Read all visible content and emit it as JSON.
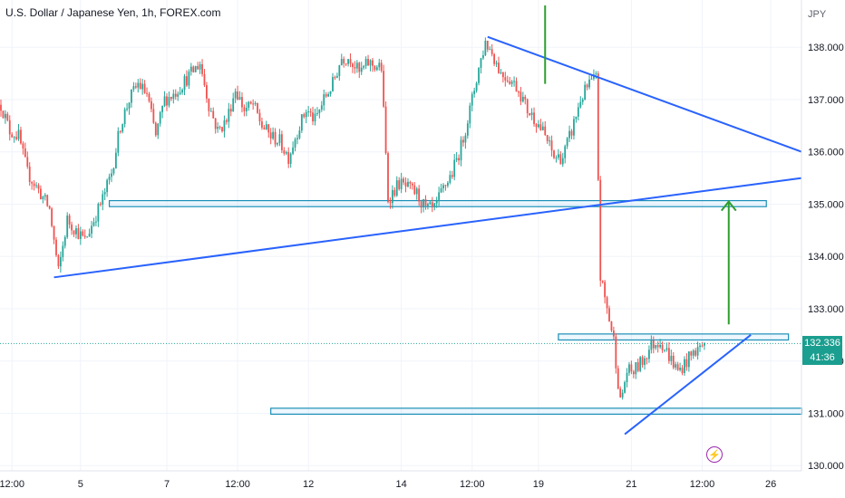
{
  "header": {
    "title": "U.S. Dollar / Japanese Yen, 1h, FOREX.com",
    "unit": "JPY"
  },
  "price_label": {
    "value": "132.336",
    "countdown": "41:36"
  },
  "badge": {
    "symbol": "⚡",
    "icon": "lightning-icon",
    "color": "#9c27b0"
  },
  "colors": {
    "up": "#26a69a",
    "down": "#ef5350",
    "trendline": "#2962ff",
    "arrow": "#2e9e2e",
    "zone": "#1a8fb8"
  },
  "chart_data": {
    "type": "candlestick",
    "ylim": [
      129.9,
      138.8
    ],
    "y_ticks": [
      130,
      131,
      132,
      133,
      134,
      135,
      136,
      137,
      138
    ],
    "y_tick_labels": [
      "130.000",
      "131.000",
      "132.000",
      "133.000",
      "134.000",
      "135.000",
      "136.000",
      "137.000",
      "138.000"
    ],
    "x_ticks": [
      {
        "label": "12:00",
        "i": 5
      },
      {
        "label": "5",
        "i": 36
      },
      {
        "label": "7",
        "i": 75
      },
      {
        "label": "12:00",
        "i": 107
      },
      {
        "label": "12",
        "i": 139
      },
      {
        "label": "14",
        "i": 181
      },
      {
        "label": "12:00",
        "i": 213
      },
      {
        "label": "19",
        "i": 243
      },
      {
        "label": "21",
        "i": 285
      },
      {
        "label": "12:00",
        "i": 317
      },
      {
        "label": "26",
        "i": 348
      }
    ],
    "candle_count": 360,
    "path": [
      [
        0,
        136.9
      ],
      [
        4,
        136.4
      ],
      [
        8,
        136.3
      ],
      [
        12,
        135.6
      ],
      [
        18,
        135.2
      ],
      [
        22,
        134.9
      ],
      [
        26,
        133.7
      ],
      [
        30,
        134.7
      ],
      [
        34,
        134.5
      ],
      [
        38,
        134.3
      ],
      [
        42,
        134.7
      ],
      [
        46,
        135.1
      ],
      [
        50,
        135.6
      ],
      [
        54,
        136.5
      ],
      [
        58,
        137.0
      ],
      [
        62,
        137.3
      ],
      [
        66,
        137.1
      ],
      [
        70,
        136.3
      ],
      [
        74,
        137.0
      ],
      [
        78,
        137.1
      ],
      [
        82,
        137.3
      ],
      [
        86,
        137.5
      ],
      [
        90,
        137.7
      ],
      [
        94,
        136.9
      ],
      [
        98,
        136.4
      ],
      [
        102,
        136.6
      ],
      [
        106,
        137.2
      ],
      [
        110,
        136.8
      ],
      [
        114,
        136.9
      ],
      [
        118,
        136.5
      ],
      [
        122,
        136.3
      ],
      [
        126,
        136.2
      ],
      [
        130,
        135.9
      ],
      [
        134,
        136.4
      ],
      [
        138,
        136.8
      ],
      [
        142,
        136.6
      ],
      [
        146,
        137.0
      ],
      [
        150,
        137.3
      ],
      [
        154,
        137.8
      ],
      [
        158,
        137.8
      ],
      [
        162,
        137.5
      ],
      [
        166,
        137.7
      ],
      [
        172,
        137.6
      ],
      [
        175,
        135.1
      ],
      [
        180,
        135.4
      ],
      [
        184,
        135.3
      ],
      [
        188,
        135.2
      ],
      [
        192,
        134.9
      ],
      [
        196,
        134.9
      ],
      [
        200,
        135.3
      ],
      [
        204,
        135.6
      ],
      [
        208,
        136.1
      ],
      [
        212,
        136.8
      ],
      [
        216,
        137.6
      ],
      [
        219,
        138.1
      ],
      [
        222,
        137.9
      ],
      [
        226,
        137.5
      ],
      [
        230,
        137.4
      ],
      [
        234,
        137.2
      ],
      [
        238,
        136.8
      ],
      [
        242,
        136.6
      ],
      [
        246,
        136.3
      ],
      [
        250,
        135.9
      ],
      [
        254,
        135.9
      ],
      [
        258,
        136.4
      ],
      [
        262,
        137.0
      ],
      [
        266,
        137.3
      ],
      [
        269,
        137.4
      ],
      [
        271,
        133.6
      ],
      [
        274,
        133.0
      ],
      [
        277,
        132.4
      ],
      [
        280,
        131.2
      ],
      [
        283,
        131.8
      ],
      [
        286,
        131.8
      ],
      [
        290,
        132.0
      ],
      [
        294,
        132.3
      ],
      [
        298,
        132.4
      ],
      [
        302,
        132.1
      ],
      [
        306,
        131.8
      ],
      [
        310,
        132.0
      ],
      [
        314,
        132.2
      ],
      [
        318,
        132.34
      ]
    ],
    "trendlines": [
      {
        "from": [
          24,
          133.6
        ],
        "to": [
          362,
          135.5
        ]
      },
      {
        "from": [
          220,
          138.2
        ],
        "to": [
          362,
          136.0
        ]
      },
      {
        "from": [
          282,
          130.6
        ],
        "to": [
          339,
          132.5
        ]
      }
    ],
    "zones": [
      {
        "from": 49,
        "to": 346,
        "y_low": 134.97,
        "y_high": 135.05
      },
      {
        "from": 252,
        "to": 356,
        "y_low": 132.42,
        "y_high": 132.5
      },
      {
        "from": 122,
        "to": 362,
        "y_low": 131.0,
        "y_high": 131.08
      }
    ],
    "arrows": [
      {
        "x": 246,
        "from": 137.3,
        "to": 138.8,
        "head": false
      },
      {
        "x": 329,
        "from": 132.7,
        "to": 135.05,
        "head": true
      }
    ],
    "current_price": 132.336
  }
}
